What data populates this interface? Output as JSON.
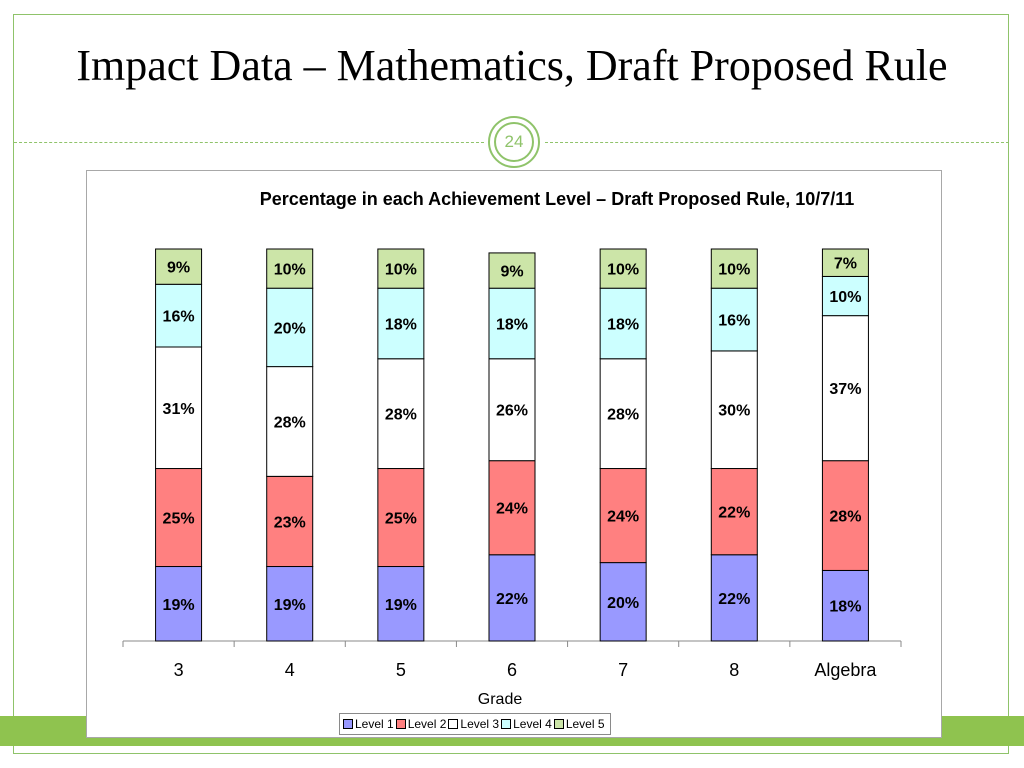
{
  "slide": {
    "title": "Impact Data – Mathematics, Draft Proposed Rule",
    "page_number": "24",
    "accent_color": "#8fc34f"
  },
  "chart_data": {
    "type": "bar",
    "stacked": true,
    "title": "Percentage in each Achievement Level – Draft Proposed Rule, 10/7/11",
    "xlabel": "Grade",
    "ylabel": "",
    "categories": [
      "3",
      "4",
      "5",
      "6",
      "7",
      "8",
      "Algebra"
    ],
    "ylim": [
      0,
      100
    ],
    "grid": false,
    "legend_position": "bottom",
    "series": [
      {
        "name": "Level 1",
        "color": "#9999ff",
        "values": [
          19,
          19,
          19,
          22,
          20,
          22,
          18
        ],
        "labels": [
          "19%",
          "19%",
          "19%",
          "22%",
          "20%",
          "22%",
          "18%"
        ]
      },
      {
        "name": "Level 2",
        "color": "#ff8080",
        "values": [
          25,
          23,
          25,
          24,
          24,
          22,
          28
        ],
        "labels": [
          "25%",
          "23%",
          "25%",
          "24%",
          "24%",
          "22%",
          "28%"
        ]
      },
      {
        "name": "Level 3",
        "color": "#ffffff",
        "values": [
          31,
          28,
          28,
          26,
          28,
          30,
          37
        ],
        "labels": [
          "31%",
          "28%",
          "28%",
          "26%",
          "28%",
          "30%",
          "37%"
        ]
      },
      {
        "name": "Level 4",
        "color": "#ccffff",
        "values": [
          16,
          20,
          18,
          18,
          18,
          16,
          10
        ],
        "labels": [
          "16%",
          "20%",
          "18%",
          "18%",
          "18%",
          "16%",
          "10%"
        ]
      },
      {
        "name": "Level 5",
        "color": "#cce5a8",
        "values": [
          9,
          10,
          10,
          9,
          10,
          10,
          7
        ],
        "labels": [
          "9%",
          "10%",
          "10%",
          "9%",
          "10%",
          "10%",
          "7%"
        ]
      }
    ]
  }
}
